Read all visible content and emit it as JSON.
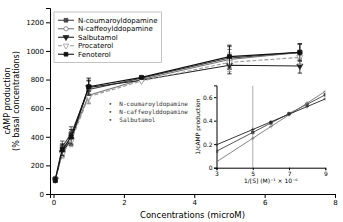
{
  "chart_data": [
    {
      "type": "line",
      "xlabel": "Concentrations (microM)",
      "ylabel": "cAMP production\n(% basal concentrations)",
      "xlim": [
        -0.1,
        8
      ],
      "ylim": [
        0,
        1300
      ],
      "xticks": [
        0,
        2,
        4,
        6,
        8
      ],
      "yticks": [
        0,
        200,
        400,
        600,
        800,
        1000,
        1200
      ],
      "legend": "upper left",
      "x": [
        0.05,
        0.25,
        0.5,
        1.0,
        2.5,
        5.0,
        7.0
      ],
      "series": [
        {
          "name": "N-coumaroyldopamine",
          "color": "#444444",
          "marker": "square",
          "line_style": "solid",
          "values": [
            100,
            330,
            420,
            730,
            810,
            950,
            990
          ],
          "errors": [
            15,
            40,
            50,
            60,
            0,
            80,
            60
          ]
        },
        {
          "name": "N-caffeoylddopamine",
          "color": "#777777",
          "marker": "circle-open",
          "line_style": "solid",
          "values": [
            100,
            300,
            390,
            690,
            800,
            940,
            990
          ],
          "errors": [
            15,
            35,
            45,
            55,
            0,
            70,
            55
          ]
        },
        {
          "name": "Salbutamol",
          "color": "#222222",
          "marker": "triangle-down",
          "line_style": "solid",
          "values": [
            100,
            290,
            380,
            745,
            795,
            900,
            895
          ],
          "errors": [
            15,
            30,
            40,
            50,
            0,
            60,
            50
          ]
        },
        {
          "name": "Procaterol",
          "color": "#999999",
          "marker": "triangle-down-open",
          "line_style": "dashed",
          "values": [
            100,
            280,
            370,
            680,
            790,
            920,
            955
          ],
          "errors": [
            15,
            30,
            40,
            50,
            0,
            65,
            50
          ]
        },
        {
          "name": "Fenoterol",
          "color": "#111111",
          "marker": "square",
          "line_style": "solid",
          "values": [
            100,
            310,
            400,
            750,
            815,
            960,
            990
          ],
          "errors": [
            20,
            40,
            50,
            60,
            0,
            80,
            60
          ]
        }
      ]
    },
    {
      "type": "line",
      "xlabel": "1/[S] (M)⁻¹ × 10⁻⁶",
      "ylabel": "1/cAMP production",
      "xlim": [
        3,
        9
      ],
      "ylim": [
        0,
        0.7
      ],
      "xticks": [
        3,
        5,
        7,
        9
      ],
      "yticks": [
        0,
        0.2,
        0.4,
        0.6
      ],
      "vline": 5,
      "legend": "left",
      "x": [
        3,
        5,
        6,
        7,
        8,
        9
      ],
      "series": [
        {
          "name": "•  N-coumaroyldopamine",
          "color": "#444444",
          "marker": "square",
          "values": [
            0.14,
            0.3,
            0.38,
            0.46,
            0.54,
            0.62
          ]
        },
        {
          "name": "•  N-caffeoylddopamine",
          "color": "#777777",
          "marker": "plus",
          "values": [
            0.05,
            0.25,
            0.35,
            0.45,
            0.55,
            0.65
          ]
        },
        {
          "name": "•  Salbutamol",
          "color": "#222222",
          "marker": "plus",
          "values": [
            0.195,
            0.325,
            0.39,
            0.455,
            0.52,
            0.585
          ]
        }
      ]
    }
  ]
}
